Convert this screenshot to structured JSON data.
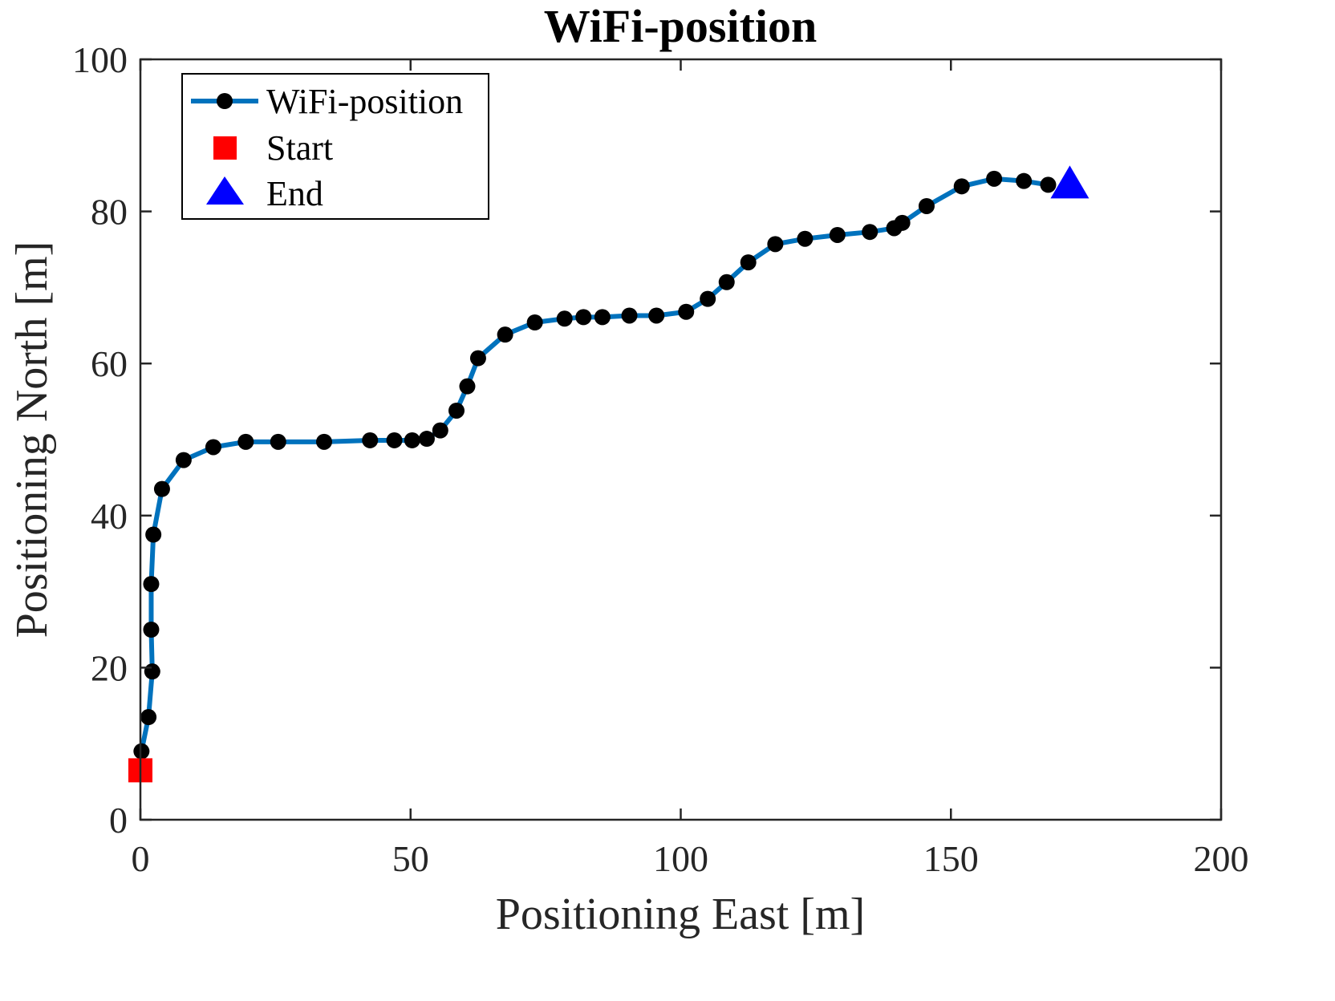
{
  "chart_data": {
    "type": "line",
    "title": "WiFi-position",
    "xlabel": "Positioning East [m]",
    "ylabel": "Positioning North [m]",
    "xlim": [
      0,
      200
    ],
    "ylim": [
      0,
      100
    ],
    "xticks": [
      0,
      50,
      100,
      150,
      200
    ],
    "yticks": [
      0,
      20,
      40,
      60,
      80,
      100
    ],
    "xtick_labels": [
      "0",
      "50",
      "100",
      "150",
      "200"
    ],
    "ytick_labels": [
      "0",
      "20",
      "40",
      "60",
      "80",
      "100"
    ],
    "grid": false,
    "legend_position": "top-left",
    "legend": [
      "WiFi-position",
      "Start",
      "End"
    ],
    "series": [
      {
        "name": "WiFi-position",
        "color": "#0072BD",
        "marker_color": "#000000",
        "points": [
          [
            0.2,
            9.0
          ],
          [
            1.5,
            13.5
          ],
          [
            2.2,
            19.5
          ],
          [
            2.0,
            25.0
          ],
          [
            2.0,
            31.0
          ],
          [
            2.4,
            37.5
          ],
          [
            4.0,
            43.5
          ],
          [
            8.0,
            47.3
          ],
          [
            13.5,
            49.0
          ],
          [
            19.5,
            49.7
          ],
          [
            25.5,
            49.7
          ],
          [
            34.0,
            49.7
          ],
          [
            42.5,
            49.9
          ],
          [
            47.0,
            49.9
          ],
          [
            50.3,
            49.9
          ],
          [
            53.0,
            50.1
          ],
          [
            55.5,
            51.2
          ],
          [
            58.5,
            53.8
          ],
          [
            60.5,
            57.0
          ],
          [
            62.5,
            60.7
          ],
          [
            67.5,
            63.8
          ],
          [
            73.0,
            65.4
          ],
          [
            78.5,
            65.9
          ],
          [
            82.0,
            66.1
          ],
          [
            85.5,
            66.1
          ],
          [
            90.5,
            66.3
          ],
          [
            95.5,
            66.3
          ],
          [
            101.0,
            66.8
          ],
          [
            105.0,
            68.5
          ],
          [
            108.5,
            70.7
          ],
          [
            112.5,
            73.3
          ],
          [
            117.5,
            75.7
          ],
          [
            123.0,
            76.4
          ],
          [
            129.0,
            76.9
          ],
          [
            135.0,
            77.3
          ],
          [
            139.5,
            77.8
          ],
          [
            141.0,
            78.5
          ],
          [
            145.5,
            80.7
          ],
          [
            152.0,
            83.3
          ],
          [
            158.0,
            84.3
          ],
          [
            163.5,
            84.0
          ],
          [
            168.0,
            83.5
          ]
        ]
      },
      {
        "name": "Start",
        "color": "#FF0000",
        "marker": "square",
        "points": [
          [
            0.0,
            6.5
          ]
        ]
      },
      {
        "name": "End",
        "color": "#0000FF",
        "marker": "triangle",
        "points": [
          [
            172.0,
            83.5
          ]
        ]
      }
    ]
  }
}
